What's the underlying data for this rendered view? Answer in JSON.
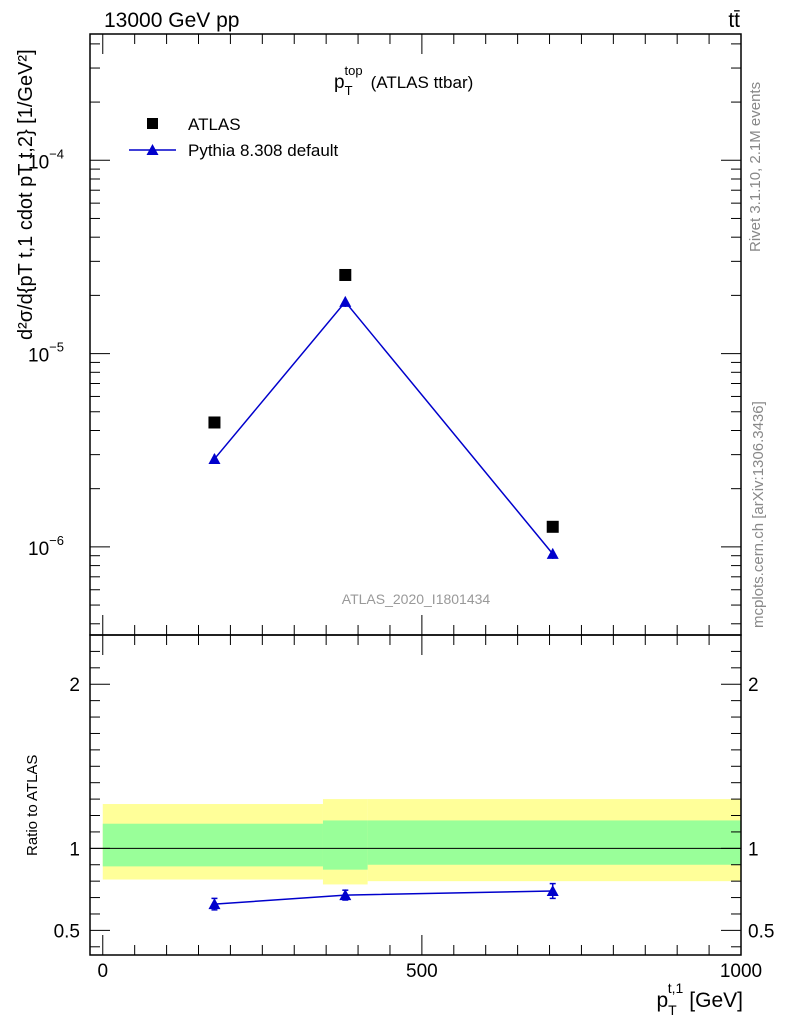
{
  "header": {
    "left": "13000 GeV pp",
    "right": "tt̄"
  },
  "side_labels": {
    "rivet": "Rivet 3.1.10,  2.1M events",
    "mcplots": "mcplots.cern.ch [arXiv:1306.3436]"
  },
  "chart_data": [
    {
      "type": "scatter",
      "title_main": "p",
      "title_sub": "T",
      "title_sup": "top",
      "title_suffix": "(ATLAS ttbar)",
      "watermark": "ATLAS_2020_I1801434",
      "yscale": "log",
      "xlim": [
        -20,
        1000
      ],
      "ylim": [
        3.5e-07,
        0.00045
      ],
      "ylabel": "d²σ/d{pT t,1 cdot pT t,2} [1/GeV²]",
      "ytick_labels": [
        {
          "base": "10",
          "exp": "−6",
          "value": 1e-06
        },
        {
          "base": "10",
          "exp": "−5",
          "value": 1e-05
        },
        {
          "base": "10",
          "exp": "−4",
          "value": 0.0001
        }
      ],
      "legend_position": "top-left",
      "series": [
        {
          "name": "ATLAS",
          "marker": "square",
          "color": "#000000",
          "x": [
            175,
            380,
            705
          ],
          "y": [
            4.4e-06,
            2.55e-05,
            1.27e-06
          ]
        },
        {
          "name": "Pythia 8.308 default",
          "marker": "triangle",
          "color": "#0000cc",
          "x": [
            175,
            380,
            705
          ],
          "y": [
            2.85e-06,
            1.85e-05,
            9.2e-07
          ]
        }
      ]
    },
    {
      "type": "scatter",
      "ylabel": "Ratio to ATLAS",
      "xlabel_main": "p",
      "xlabel_sub": "T",
      "xlabel_sup": "t,1",
      "xlabel_unit": "[GeV]",
      "xlim": [
        -20,
        1000
      ],
      "ylim": [
        0.35,
        2.3
      ],
      "x_ticks": [
        0,
        500,
        1000
      ],
      "y_ticks": [
        0.5,
        1,
        2
      ],
      "reference_line": 1,
      "bands": [
        {
          "x": [
            0,
            345
          ],
          "green": [
            0.89,
            1.15
          ],
          "yellow": [
            0.81,
            1.27
          ]
        },
        {
          "x": [
            345,
            415
          ],
          "green": [
            0.87,
            1.17
          ],
          "yellow": [
            0.78,
            1.3
          ]
        },
        {
          "x": [
            415,
            1000
          ],
          "green": [
            0.9,
            1.17
          ],
          "yellow": [
            0.8,
            1.3
          ]
        }
      ],
      "series": [
        {
          "name": "Pythia 8.308 default",
          "color": "#0000cc",
          "x": [
            175,
            380,
            705
          ],
          "y": [
            0.66,
            0.715,
            0.74
          ],
          "yerr": [
            0.035,
            0.03,
            0.045
          ]
        }
      ]
    }
  ],
  "colors": {
    "band_green": "#99ff99",
    "band_yellow": "#ffff99",
    "pythia": "#0000cc",
    "atlas": "#000000",
    "side_text": "#888888"
  }
}
